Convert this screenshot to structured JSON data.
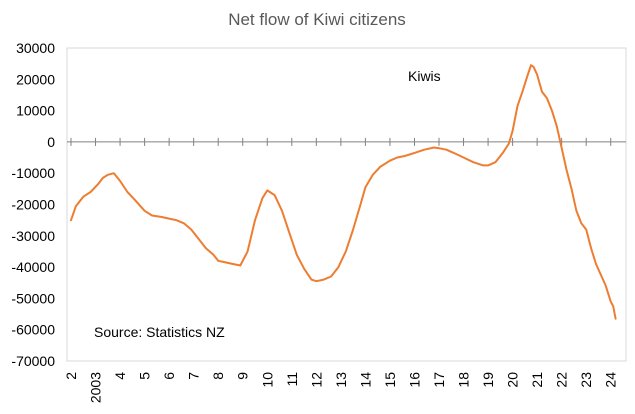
{
  "chart_data": {
    "type": "line",
    "title": "Net flow of Kiwi citizens",
    "xlabel": "",
    "ylabel": "",
    "ylim": [
      -70000,
      30000
    ],
    "y_ticks": [
      30000,
      20000,
      10000,
      0,
      -10000,
      -20000,
      -30000,
      -40000,
      -50000,
      -60000,
      -70000
    ],
    "y_tick_labels": [
      "30000",
      "20000",
      "10000",
      "0",
      "-10000",
      "-20000",
      "-30000",
      "-40000",
      "-50000",
      "-60000",
      "-70000"
    ],
    "xlim": [
      2002,
      2024.5
    ],
    "x_ticks": [
      2002,
      2003,
      2004,
      2005,
      2006,
      2007,
      2008,
      2009,
      2010,
      2011,
      2012,
      2013,
      2014,
      2015,
      2016,
      2017,
      2018,
      2019,
      2020,
      2021,
      2022,
      2023,
      2024
    ],
    "x_tick_labels": [
      "2",
      "2003",
      "4",
      "5",
      "6",
      "7",
      "8",
      "9",
      "10",
      "11",
      "12",
      "13",
      "14",
      "15",
      "16",
      "17",
      "18",
      "19",
      "20",
      "21",
      "22",
      "23",
      "24"
    ],
    "grid": false,
    "series": [
      {
        "name": "Kiwis",
        "color": "#ED7D31",
        "x": [
          2002.0,
          2002.2,
          2002.5,
          2002.8,
          2003.1,
          2003.3,
          2003.5,
          2003.75,
          2004.0,
          2004.3,
          2004.6,
          2005.0,
          2005.3,
          2005.7,
          2006.0,
          2006.3,
          2006.6,
          2006.9,
          2007.2,
          2007.5,
          2007.8,
          2008.0,
          2008.3,
          2008.6,
          2008.9,
          2009.2,
          2009.5,
          2009.8,
          2010.0,
          2010.3,
          2010.6,
          2010.9,
          2011.2,
          2011.5,
          2011.8,
          2012.0,
          2012.3,
          2012.6,
          2012.9,
          2013.2,
          2013.5,
          2013.8,
          2014.0,
          2014.3,
          2014.6,
          2015.0,
          2015.3,
          2015.6,
          2016.0,
          2016.4,
          2016.8,
          2017.0,
          2017.3,
          2017.6,
          2018.0,
          2018.4,
          2018.8,
          2019.0,
          2019.3,
          2019.6,
          2019.85,
          2020.0,
          2020.2,
          2020.4,
          2020.6,
          2020.75,
          2020.85,
          2021.0,
          2021.2,
          2021.4,
          2021.6,
          2021.8,
          2022.0,
          2022.2,
          2022.4,
          2022.6,
          2022.8,
          2023.0,
          2023.2,
          2023.4,
          2023.6,
          2023.8,
          2024.0,
          2024.1,
          2024.2
        ],
        "values": [
          -25000,
          -20500,
          -17500,
          -16000,
          -13500,
          -11500,
          -10500,
          -10000,
          -12500,
          -16000,
          -18500,
          -22000,
          -23500,
          -24000,
          -24500,
          -25000,
          -26000,
          -28000,
          -31000,
          -34000,
          -36000,
          -38000,
          -38500,
          -39000,
          -39500,
          -35000,
          -25000,
          -18000,
          -15500,
          -17000,
          -22000,
          -29000,
          -36000,
          -40500,
          -44000,
          -44500,
          -44000,
          -43000,
          -40000,
          -35000,
          -28000,
          -20000,
          -14500,
          -10500,
          -8000,
          -6000,
          -5000,
          -4500,
          -3500,
          -2500,
          -1800,
          -2000,
          -2500,
          -3500,
          -5000,
          -6500,
          -7500,
          -7500,
          -6500,
          -3500,
          -500,
          3500,
          11500,
          16000,
          21000,
          24500,
          24000,
          21500,
          16000,
          14000,
          10000,
          5000,
          -2000,
          -9000,
          -15000,
          -22000,
          -26000,
          -28000,
          -34000,
          -39000,
          -42500,
          -46000,
          -51000,
          -52500,
          -56500
        ]
      }
    ],
    "annotations": [
      "Kiwis",
      "Source: Statistics NZ"
    ]
  }
}
